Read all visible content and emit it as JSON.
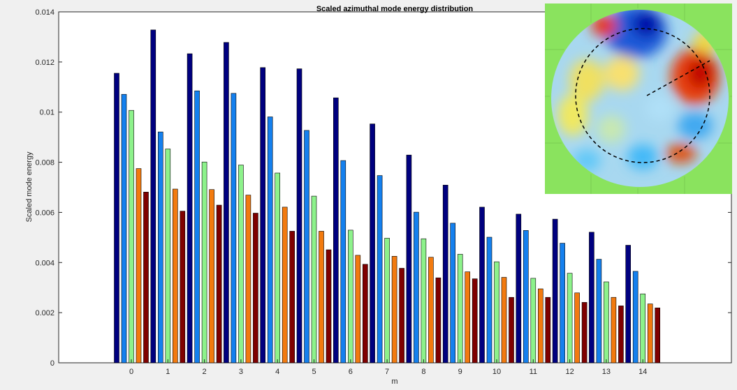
{
  "chart_data": {
    "type": "bar",
    "title": "Scaled azimuthal mode energy distribution",
    "xlabel": "m",
    "ylabel": "Scaled mode energy",
    "categories": [
      "0",
      "1",
      "2",
      "3",
      "4",
      "5",
      "6",
      "7",
      "8",
      "9",
      "10",
      "11",
      "12",
      "13",
      "14"
    ],
    "ylim": [
      0,
      0.014
    ],
    "yticks": [
      "0",
      "0.002",
      "0.004",
      "0.006",
      "0.008",
      "0.01",
      "0.012",
      "0.014"
    ],
    "grid": false,
    "series": [
      {
        "color": "#00007f",
        "values": [
          0.01155,
          0.01328,
          0.01233,
          0.01278,
          0.01178,
          0.01173,
          0.01057,
          0.00953,
          0.00829,
          0.00709,
          0.00621,
          0.00593,
          0.00573,
          0.00521,
          0.00469
        ]
      },
      {
        "color": "#1480ee",
        "values": [
          0.01071,
          0.00921,
          0.01085,
          0.01075,
          0.00981,
          0.00927,
          0.00807,
          0.00747,
          0.00601,
          0.00557,
          0.00501,
          0.00528,
          0.00477,
          0.00413,
          0.00365
        ]
      },
      {
        "color": "#8df28b",
        "values": [
          0.01007,
          0.00853,
          0.00801,
          0.00789,
          0.00757,
          0.00665,
          0.00529,
          0.00497,
          0.00495,
          0.00433,
          0.00403,
          0.00337,
          0.00357,
          0.00323,
          0.00275
        ]
      },
      {
        "color": "#f27a0f",
        "values": [
          0.00775,
          0.00693,
          0.00691,
          0.00669,
          0.00621,
          0.00525,
          0.00429,
          0.00425,
          0.00421,
          0.00363,
          0.00341,
          0.00295,
          0.00279,
          0.00261,
          0.00235
        ]
      },
      {
        "color": "#7f0000",
        "values": [
          0.00681,
          0.00605,
          0.00629,
          0.00597,
          0.00525,
          0.00451,
          0.00393,
          0.00377,
          0.00339,
          0.00335,
          0.00261,
          0.00261,
          0.00241,
          0.00227,
          0.00219
        ]
      }
    ],
    "inset": {
      "type": "heatmap",
      "description_colors": {
        "background": "#8ae35e",
        "low": "#0000b0",
        "mid": "#00c8ff",
        "high": "#c00000",
        "neutral": "#a8d8f0"
      },
      "dashed_circle": true,
      "radial_line": true
    }
  }
}
